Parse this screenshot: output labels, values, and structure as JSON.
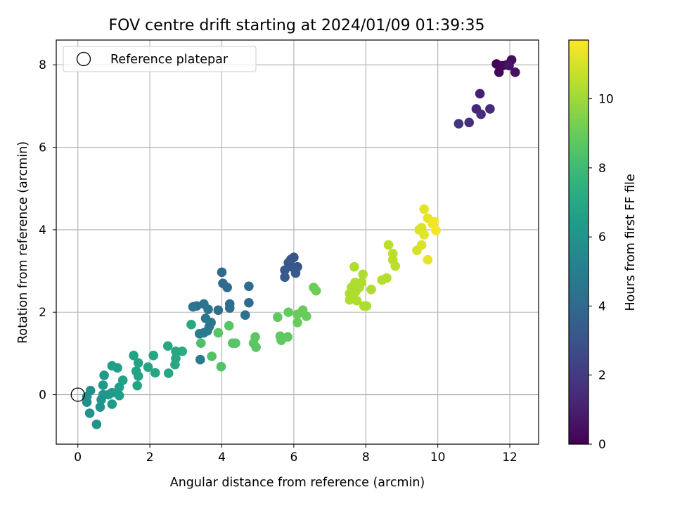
{
  "chart_data": {
    "type": "scatter",
    "title": "FOV centre drift starting at 2024/01/09 01:39:35",
    "xlabel": "Angular distance from reference (arcmin)",
    "ylabel": "Rotation from reference (arcmin)",
    "xlim": [
      -0.6,
      12.8
    ],
    "ylim": [
      -1.2,
      8.6
    ],
    "x_ticks": [
      0,
      2,
      4,
      6,
      8,
      10,
      12
    ],
    "y_ticks": [
      0,
      2,
      4,
      6,
      8
    ],
    "grid": true,
    "legend": {
      "position": "top-left",
      "entries": [
        {
          "label": "Reference platepar",
          "marker": "open-circle"
        }
      ]
    },
    "reference_point": {
      "x": 0,
      "y": 0
    },
    "colorbar": {
      "label": "Hours from first FF file",
      "colormap": "viridis",
      "range": [
        0,
        11.7
      ],
      "ticks": [
        0,
        2,
        4,
        6,
        8,
        10
      ]
    },
    "series": [
      {
        "value_dimension": "hours",
        "points": [
          {
            "x": 11.63,
            "y": 8.02,
            "c": 0.0
          },
          {
            "x": 11.7,
            "y": 7.82,
            "c": 0.1
          },
          {
            "x": 11.8,
            "y": 7.98,
            "c": 0.2
          },
          {
            "x": 11.92,
            "y": 8.0,
            "c": 0.3
          },
          {
            "x": 12.05,
            "y": 8.12,
            "c": 0.4
          },
          {
            "x": 12.15,
            "y": 7.82,
            "c": 0.5
          },
          {
            "x": 11.98,
            "y": 7.98,
            "c": 0.6
          },
          {
            "x": 11.17,
            "y": 7.3,
            "c": 1.0
          },
          {
            "x": 11.07,
            "y": 6.93,
            "c": 1.2
          },
          {
            "x": 11.45,
            "y": 6.93,
            "c": 1.4
          },
          {
            "x": 11.2,
            "y": 6.8,
            "c": 1.5
          },
          {
            "x": 10.87,
            "y": 6.6,
            "c": 1.6
          },
          {
            "x": 10.58,
            "y": 6.57,
            "c": 1.8
          },
          {
            "x": 6.0,
            "y": 3.33,
            "c": 3.0
          },
          {
            "x": 5.92,
            "y": 3.28,
            "c": 3.05
          },
          {
            "x": 6.1,
            "y": 3.1,
            "c": 3.1
          },
          {
            "x": 5.85,
            "y": 3.2,
            "c": 3.15
          },
          {
            "x": 5.95,
            "y": 3.1,
            "c": 3.2
          },
          {
            "x": 5.75,
            "y": 3.02,
            "c": 3.25
          },
          {
            "x": 6.05,
            "y": 2.95,
            "c": 3.3
          },
          {
            "x": 5.75,
            "y": 2.85,
            "c": 3.35
          },
          {
            "x": 4.0,
            "y": 2.97,
            "c": 4.0
          },
          {
            "x": 4.03,
            "y": 2.7,
            "c": 4.05
          },
          {
            "x": 4.15,
            "y": 2.6,
            "c": 4.1
          },
          {
            "x": 4.75,
            "y": 2.63,
            "c": 4.1
          },
          {
            "x": 4.75,
            "y": 2.23,
            "c": 4.15
          },
          {
            "x": 4.22,
            "y": 2.2,
            "c": 4.2
          },
          {
            "x": 4.22,
            "y": 2.1,
            "c": 4.25
          },
          {
            "x": 3.9,
            "y": 2.05,
            "c": 4.3
          },
          {
            "x": 4.65,
            "y": 1.93,
            "c": 4.35
          },
          {
            "x": 3.5,
            "y": 2.2,
            "c": 4.4
          },
          {
            "x": 3.3,
            "y": 2.15,
            "c": 4.45
          },
          {
            "x": 3.2,
            "y": 2.13,
            "c": 4.5
          },
          {
            "x": 3.62,
            "y": 2.07,
            "c": 4.55
          },
          {
            "x": 3.55,
            "y": 1.85,
            "c": 4.6
          },
          {
            "x": 3.7,
            "y": 1.75,
            "c": 4.65
          },
          {
            "x": 3.65,
            "y": 1.65,
            "c": 4.7
          },
          {
            "x": 3.6,
            "y": 1.55,
            "c": 4.75
          },
          {
            "x": 3.5,
            "y": 1.5,
            "c": 4.8
          },
          {
            "x": 3.38,
            "y": 1.48,
            "c": 4.85
          },
          {
            "x": 3.4,
            "y": 0.85,
            "c": 4.9
          },
          {
            "x": 3.15,
            "y": 1.7,
            "c": 7.0
          },
          {
            "x": 2.9,
            "y": 1.05,
            "c": 7.2
          },
          {
            "x": 2.72,
            "y": 1.05,
            "c": 7.0
          },
          {
            "x": 2.72,
            "y": 0.88,
            "c": 7.0
          },
          {
            "x": 2.7,
            "y": 0.73,
            "c": 7.0
          },
          {
            "x": 2.5,
            "y": 1.18,
            "c": 7.0
          },
          {
            "x": 2.52,
            "y": 0.52,
            "c": 6.9
          },
          {
            "x": 2.1,
            "y": 0.95,
            "c": 6.9
          },
          {
            "x": 2.15,
            "y": 0.53,
            "c": 6.9
          },
          {
            "x": 1.95,
            "y": 0.67,
            "c": 6.8
          },
          {
            "x": 1.68,
            "y": 0.77,
            "c": 6.8
          },
          {
            "x": 1.62,
            "y": 0.57,
            "c": 6.8
          },
          {
            "x": 1.68,
            "y": 0.45,
            "c": 6.8
          },
          {
            "x": 1.65,
            "y": 0.22,
            "c": 6.8
          },
          {
            "x": 1.55,
            "y": 0.95,
            "c": 6.7
          },
          {
            "x": 1.25,
            "y": 0.35,
            "c": 6.7
          },
          {
            "x": 1.1,
            "y": 0.65,
            "c": 6.6
          },
          {
            "x": 0.95,
            "y": 0.7,
            "c": 6.6
          },
          {
            "x": 1.15,
            "y": 0.18,
            "c": 6.5
          },
          {
            "x": 1.15,
            "y": -0.02,
            "c": 6.5
          },
          {
            "x": 0.95,
            "y": 0.05,
            "c": 6.4
          },
          {
            "x": 0.95,
            "y": -0.23,
            "c": 6.4
          },
          {
            "x": 0.85,
            "y": 0.0,
            "c": 6.3
          },
          {
            "x": 0.73,
            "y": 0.47,
            "c": 6.3
          },
          {
            "x": 0.7,
            "y": 0.23,
            "c": 6.2
          },
          {
            "x": 0.7,
            "y": 0.0,
            "c": 6.2
          },
          {
            "x": 0.65,
            "y": -0.12,
            "c": 6.1
          },
          {
            "x": 0.62,
            "y": -0.3,
            "c": 6.1
          },
          {
            "x": 0.52,
            "y": -0.72,
            "c": 6.0
          },
          {
            "x": 0.33,
            "y": -0.45,
            "c": 6.0
          },
          {
            "x": 0.35,
            "y": 0.1,
            "c": 5.9
          },
          {
            "x": 0.25,
            "y": -0.05,
            "c": 5.9
          },
          {
            "x": 0.25,
            "y": -0.18,
            "c": 5.8
          },
          {
            "x": 3.9,
            "y": 1.5,
            "c": 8.6
          },
          {
            "x": 4.2,
            "y": 1.67,
            "c": 8.6
          },
          {
            "x": 4.3,
            "y": 1.25,
            "c": 8.6
          },
          {
            "x": 4.38,
            "y": 1.25,
            "c": 8.6
          },
          {
            "x": 3.72,
            "y": 0.93,
            "c": 8.5
          },
          {
            "x": 3.98,
            "y": 0.68,
            "c": 8.5
          },
          {
            "x": 3.42,
            "y": 1.25,
            "c": 8.4
          },
          {
            "x": 4.93,
            "y": 1.4,
            "c": 8.7
          },
          {
            "x": 4.88,
            "y": 1.25,
            "c": 8.7
          },
          {
            "x": 4.95,
            "y": 1.15,
            "c": 8.7
          },
          {
            "x": 5.55,
            "y": 1.88,
            "c": 8.8
          },
          {
            "x": 5.62,
            "y": 1.42,
            "c": 8.8
          },
          {
            "x": 5.65,
            "y": 1.32,
            "c": 8.8
          },
          {
            "x": 5.83,
            "y": 1.4,
            "c": 8.8
          },
          {
            "x": 5.85,
            "y": 2.0,
            "c": 8.9
          },
          {
            "x": 6.1,
            "y": 1.95,
            "c": 9.0
          },
          {
            "x": 6.1,
            "y": 1.75,
            "c": 9.0
          },
          {
            "x": 6.25,
            "y": 2.05,
            "c": 9.0
          },
          {
            "x": 6.35,
            "y": 1.9,
            "c": 9.0
          },
          {
            "x": 6.55,
            "y": 2.6,
            "c": 9.1
          },
          {
            "x": 6.62,
            "y": 2.52,
            "c": 9.1
          },
          {
            "x": 7.55,
            "y": 2.45,
            "c": 10.3
          },
          {
            "x": 7.55,
            "y": 2.3,
            "c": 10.3
          },
          {
            "x": 7.6,
            "y": 2.6,
            "c": 10.3
          },
          {
            "x": 7.65,
            "y": 2.4,
            "c": 10.3
          },
          {
            "x": 7.68,
            "y": 3.1,
            "c": 10.3
          },
          {
            "x": 7.7,
            "y": 2.72,
            "c": 10.3
          },
          {
            "x": 7.72,
            "y": 2.5,
            "c": 10.3
          },
          {
            "x": 7.75,
            "y": 2.28,
            "c": 10.3
          },
          {
            "x": 7.82,
            "y": 2.6,
            "c": 10.3
          },
          {
            "x": 7.88,
            "y": 2.72,
            "c": 10.3
          },
          {
            "x": 7.92,
            "y": 2.92,
            "c": 10.3
          },
          {
            "x": 7.95,
            "y": 2.15,
            "c": 10.3
          },
          {
            "x": 8.02,
            "y": 2.15,
            "c": 10.3
          },
          {
            "x": 8.15,
            "y": 2.55,
            "c": 10.3
          },
          {
            "x": 8.45,
            "y": 2.78,
            "c": 10.4
          },
          {
            "x": 8.58,
            "y": 2.83,
            "c": 10.4
          },
          {
            "x": 8.63,
            "y": 3.63,
            "c": 10.5
          },
          {
            "x": 8.75,
            "y": 3.42,
            "c": 10.5
          },
          {
            "x": 8.75,
            "y": 3.27,
            "c": 10.5
          },
          {
            "x": 8.82,
            "y": 3.12,
            "c": 10.5
          },
          {
            "x": 9.42,
            "y": 3.5,
            "c": 11.0
          },
          {
            "x": 9.48,
            "y": 4.0,
            "c": 11.1
          },
          {
            "x": 9.55,
            "y": 4.05,
            "c": 11.1
          },
          {
            "x": 9.55,
            "y": 3.63,
            "c": 11.1
          },
          {
            "x": 9.62,
            "y": 4.5,
            "c": 11.2
          },
          {
            "x": 9.62,
            "y": 3.88,
            "c": 11.2
          },
          {
            "x": 9.72,
            "y": 4.28,
            "c": 11.3
          },
          {
            "x": 9.72,
            "y": 3.27,
            "c": 11.3
          },
          {
            "x": 9.85,
            "y": 4.15,
            "c": 11.4
          },
          {
            "x": 9.9,
            "y": 4.2,
            "c": 11.5
          },
          {
            "x": 9.95,
            "y": 3.98,
            "c": 11.6
          }
        ]
      }
    ]
  }
}
